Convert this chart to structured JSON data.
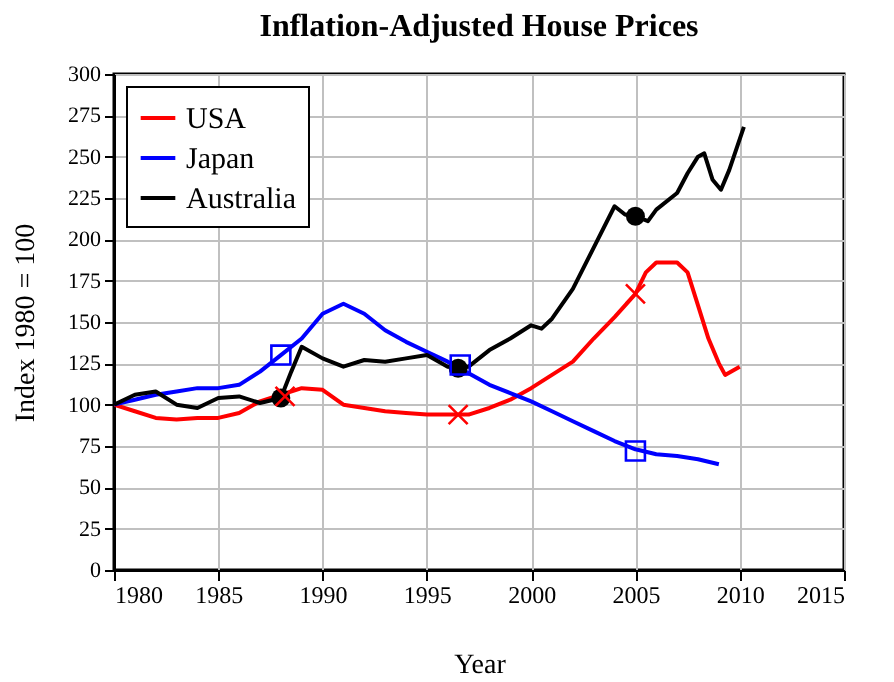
{
  "chart_data": {
    "type": "line",
    "title": "Inflation-Adjusted House Prices",
    "xlabel": "Year",
    "ylabel": "Index 1980 = 100",
    "xlim": [
      1980,
      2015
    ],
    "xticks": [
      1980,
      1985,
      1990,
      1995,
      2000,
      2005,
      2010,
      2015
    ],
    "ylim": [
      0,
      300
    ],
    "yticks": [
      0,
      25,
      50,
      75,
      100,
      125,
      150,
      175,
      200,
      225,
      250,
      275,
      300
    ],
    "grid": true,
    "legend": "top left",
    "line_style": "solid",
    "series": [
      {
        "name": "USA",
        "color": "#ff0000",
        "x": [
          1980,
          1981,
          1982,
          1983,
          1984,
          1985,
          1986,
          1987,
          1988,
          1989,
          1990,
          1991,
          1992,
          1993,
          1994,
          1995,
          1996,
          1997,
          1998,
          1999,
          2000,
          2001,
          2002,
          2003,
          2004,
          2005,
          2005.5,
          2006,
          2007,
          2007.5,
          2008,
          2008.5,
          2009,
          2009.3,
          2010
        ],
        "values": [
          100,
          96,
          92,
          91,
          92,
          92,
          95,
          102,
          106,
          110,
          109,
          100,
          98,
          96,
          95,
          94,
          94,
          94,
          98,
          103,
          110,
          118,
          126,
          140,
          153,
          167,
          180,
          186,
          186,
          180,
          160,
          140,
          125,
          118,
          123
        ]
      },
      {
        "name": "Japan",
        "color": "#0000ff",
        "x": [
          1980,
          1981,
          1982,
          1983,
          1984,
          1985,
          1986,
          1987,
          1988,
          1989,
          1990,
          1991,
          1992,
          1993,
          1994,
          1995,
          1996,
          1997,
          1998,
          1999,
          2000,
          2001,
          2002,
          2003,
          2004,
          2005,
          2006,
          2007,
          2008,
          2009
        ],
        "values": [
          100,
          103,
          106,
          108,
          110,
          110,
          112,
          120,
          130,
          140,
          155,
          161,
          155,
          145,
          138,
          132,
          126,
          119,
          112,
          107,
          102,
          96,
          90,
          84,
          78,
          73,
          70,
          69,
          67,
          64
        ]
      },
      {
        "name": "Australia",
        "color": "#000000",
        "x": [
          1980,
          1981,
          1982,
          1983,
          1984,
          1985,
          1986,
          1987,
          1988,
          1988.5,
          1989,
          1990,
          1991,
          1992,
          1993,
          1994,
          1995,
          1996,
          1997,
          1998,
          1999,
          2000,
          2000.5,
          2001,
          2002,
          2003,
          2004,
          2004.5,
          2005,
          2005.6,
          2006,
          2007,
          2007.5,
          2008,
          2008.3,
          2008.7,
          2009.1,
          2009.5,
          2010.2
        ],
        "values": [
          100,
          106,
          108,
          100,
          98,
          104,
          105,
          101,
          104,
          120,
          135,
          128,
          123,
          127,
          126,
          128,
          130,
          123,
          123,
          133,
          140,
          148,
          146,
          152,
          170,
          195,
          220,
          215,
          214,
          211,
          218,
          228,
          240,
          250,
          252,
          236,
          230,
          242,
          268
        ]
      },
      {
        "type": "scatter",
        "marker": "cross",
        "color": "#ff0000",
        "x": [
          1988.2,
          1996.5,
          2005
        ],
        "values": [
          105,
          94,
          167
        ]
      },
      {
        "type": "scatter",
        "marker": "square",
        "color": "#0000ff",
        "x": [
          1988,
          1996.6,
          2005
        ],
        "values": [
          130,
          124,
          72
        ]
      },
      {
        "type": "scatter",
        "marker": "circle",
        "color": "#000000",
        "x": [
          1988,
          1996.5,
          2005
        ],
        "values": [
          104,
          122,
          214
        ]
      }
    ]
  }
}
